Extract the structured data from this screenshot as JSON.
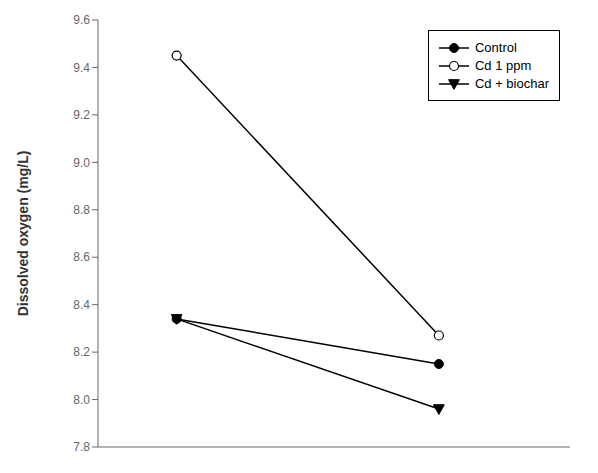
{
  "chart_data": {
    "type": "line",
    "x": [
      1,
      2
    ],
    "xlim": [
      0.7,
      2.5
    ],
    "xticks": [],
    "ylim": [
      7.8,
      9.6
    ],
    "yticks": [
      7.8,
      8.0,
      8.2,
      8.4,
      8.6,
      8.8,
      9.0,
      9.2,
      9.4,
      9.6
    ],
    "ylabel": "Dissolved oxygen (mg/L)",
    "series": [
      {
        "name": "Control",
        "color": "#000000",
        "marker": "circle",
        "values": [
          8.34,
          8.15
        ]
      },
      {
        "name": "Cd 1 ppm",
        "color": "#000000",
        "marker": "open_circle",
        "values": [
          9.45,
          8.27
        ]
      },
      {
        "name": "Cd + biochar",
        "color": "#000000",
        "marker": "triangle_down",
        "values": [
          8.34,
          7.96
        ]
      }
    ],
    "legend": "upper right",
    "grid": false,
    "tick_labels": "y"
  }
}
